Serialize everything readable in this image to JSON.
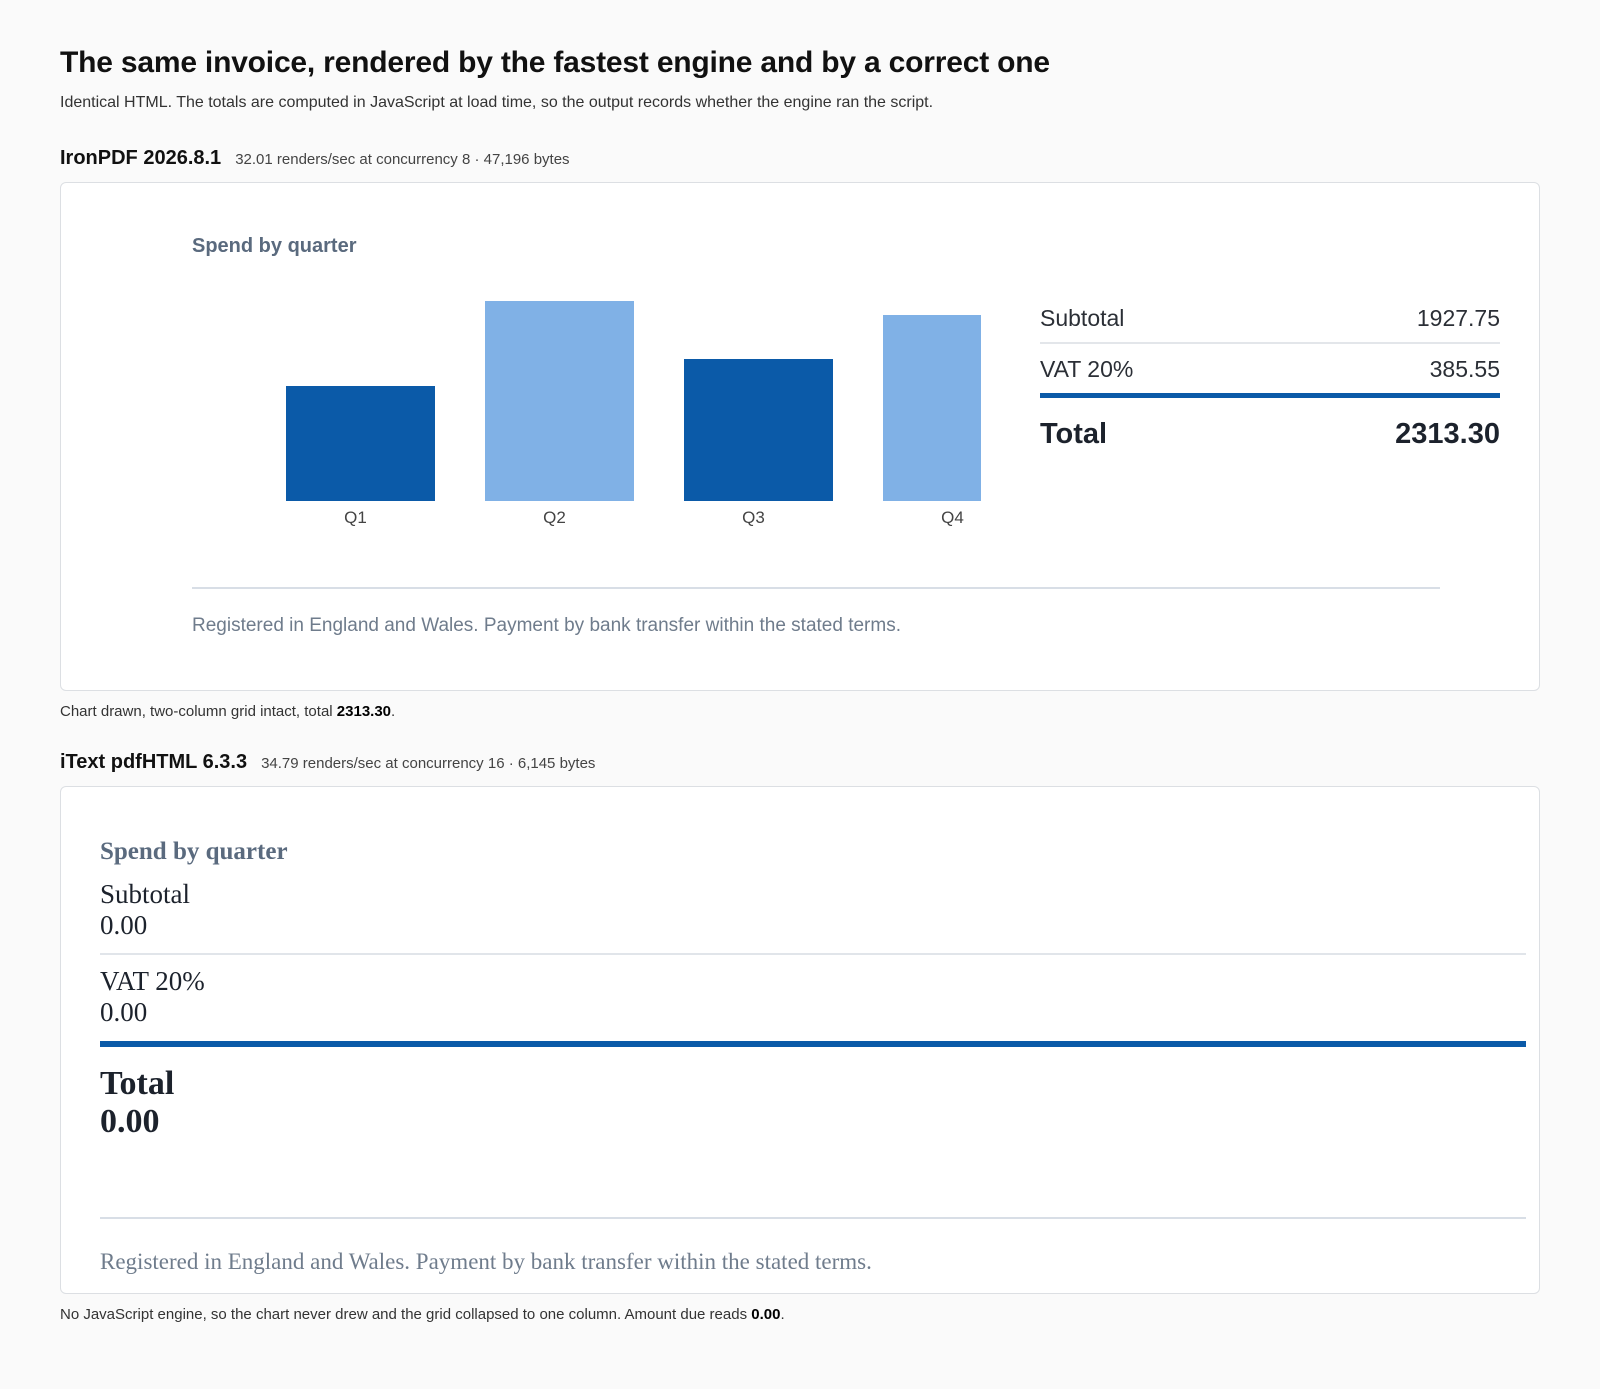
{
  "header": {
    "title": "The same invoice, rendered by the fastest engine and by a correct one",
    "subtitle": "Identical HTML. The totals are computed in JavaScript at load time, so the output records whether the engine ran the script."
  },
  "renders": [
    {
      "engine": "IronPDF 2026.8.1",
      "stats": "32.01 renders/sec at concurrency 8 · 47,196 bytes",
      "chart_title": "Spend by quarter",
      "totals": [
        {
          "label": "Subtotal",
          "value": "1927.75"
        },
        {
          "label": "VAT 20%",
          "value": "385.55"
        },
        {
          "label": "Total",
          "value": "2313.30"
        }
      ],
      "footer": "Registered in England and Wales. Payment by bank transfer within the stated terms.",
      "caption": {
        "text": "Chart drawn, two-column grid intact, total ",
        "highlight": "2313.30",
        "suffix": "."
      }
    },
    {
      "engine": "iText pdfHTML 6.3.3",
      "stats": "34.79 renders/sec at concurrency 16 · 6,145 bytes",
      "chart_title": "Spend by quarter",
      "totals": [
        {
          "label": "Subtotal",
          "value": "0.00"
        },
        {
          "label": "VAT 20%",
          "value": "0.00"
        },
        {
          "label": "Total",
          "value": "0.00"
        }
      ],
      "footer": "Registered in England and Wales. Payment by bank transfer within the stated terms.",
      "caption": {
        "text": "No JavaScript engine, so the chart never drew and the grid collapsed to one column. Amount due reads ",
        "highlight": "0.00",
        "suffix": "."
      }
    }
  ],
  "chart_data": {
    "type": "bar",
    "title": "Spend by quarter",
    "categories": [
      "Q1",
      "Q2",
      "Q3",
      "Q4"
    ],
    "values": [
      115,
      200,
      142,
      186
    ],
    "ylim": [
      0,
      200
    ],
    "grid": false,
    "colors": [
      "#0b5aa8",
      "#80b1e6",
      "#0b5aa8",
      "#80b1e6"
    ]
  }
}
